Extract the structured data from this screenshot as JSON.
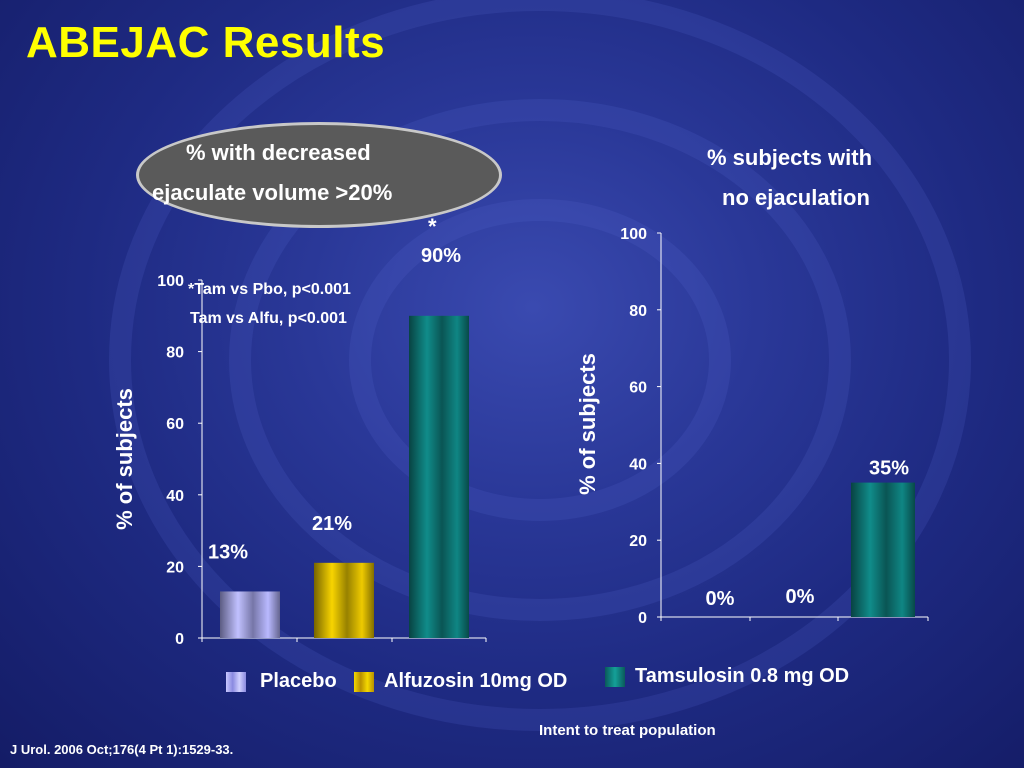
{
  "slide": {
    "title": "ABEJAC Results",
    "footer_citation": "J Urol. 2006 Oct;176(4 Pt 1):1529-33.",
    "population_note": "Intent to treat population"
  },
  "colors": {
    "title": "#ffff00",
    "placebo": "#a8a8ee",
    "alfuzosin": "#d8b800",
    "tamsulosin": "#0e7a78",
    "oval_fill": "#5a5a5a",
    "oval_border": "#c8c8c8"
  },
  "legend": [
    {
      "label": "Placebo",
      "color": "#a8a8ee"
    },
    {
      "label": "Alfuzosin 10mg OD",
      "color": "#d8b800"
    },
    {
      "label": "Tamsulosin 0.8 mg OD",
      "color": "#0e7a78"
    }
  ],
  "left_chart": {
    "oval_line1": "% with decreased",
    "oval_line2": "ejaculate volume >20%",
    "ylabel": "%  of subjects",
    "significance_star": "*",
    "stat_line1": "*Tam vs Pbo, p<0.001",
    "stat_line2": "Tam vs Alfu, p<0.001"
  },
  "right_chart": {
    "title_line1": "% subjects with",
    "title_line2": "no ejaculation",
    "ylabel": "%  of subjects"
  },
  "chart_data": [
    {
      "type": "bar",
      "title": "% with decreased ejaculate volume >20%",
      "ylabel": "%  of subjects",
      "ylim": [
        0,
        100
      ],
      "yticks": [
        0,
        20,
        40,
        60,
        80,
        100
      ],
      "categories": [
        "Placebo",
        "Alfuzosin 10mg OD",
        "Tamsulosin 0.8 mg OD"
      ],
      "values": [
        13,
        21,
        90
      ],
      "data_labels": [
        "13%",
        "21%",
        "90%"
      ],
      "colors": [
        "#a8a8ee",
        "#d8b800",
        "#0e7a78"
      ],
      "grid": false
    },
    {
      "type": "bar",
      "title": "% subjects with no ejaculation",
      "ylabel": "%  of subjects",
      "ylim": [
        0,
        100
      ],
      "yticks": [
        0,
        20,
        40,
        60,
        80,
        100
      ],
      "categories": [
        "Placebo",
        "Alfuzosin 10mg OD",
        "Tamsulosin 0.8 mg OD"
      ],
      "values": [
        0,
        0,
        35
      ],
      "data_labels": [
        "0%",
        "0%",
        "35%"
      ],
      "colors": [
        "#a8a8ee",
        "#d8b800",
        "#0e7a78"
      ],
      "grid": false
    }
  ]
}
